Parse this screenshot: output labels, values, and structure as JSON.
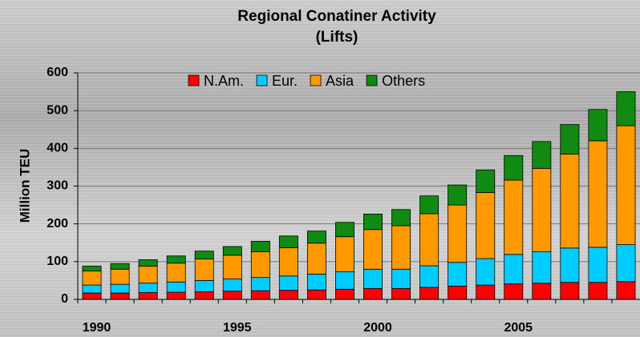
{
  "chart_data": {
    "type": "stacked-bar",
    "title": "Regional Conatiner Activity",
    "subtitle": "(Lifts)",
    "y_label": "Million TEU",
    "categories": [
      "1990",
      null,
      null,
      null,
      null,
      "1995",
      null,
      null,
      null,
      null,
      "2000",
      null,
      null,
      null,
      null,
      "2005",
      null,
      null,
      null,
      null
    ],
    "series": [
      {
        "name": "N.Am.",
        "color": "#ff0000",
        "values": [
          17,
          17,
          18,
          19,
          20,
          22,
          23,
          24,
          25,
          27,
          29,
          29,
          32,
          35,
          38,
          41,
          43,
          45,
          45,
          47
        ]
      },
      {
        "name": "Eur.",
        "color": "#00ccff",
        "values": [
          21,
          23,
          25,
          27,
          30,
          32,
          35,
          38,
          42,
          46,
          51,
          51,
          57,
          63,
          70,
          78,
          83,
          91,
          93,
          98
        ]
      },
      {
        "name": "Asia",
        "color": "#ff9900",
        "values": [
          37,
          40,
          45,
          50,
          57,
          63,
          68,
          75,
          82,
          93,
          105,
          115,
          138,
          152,
          175,
          197,
          221,
          249,
          282,
          315
        ]
      },
      {
        "name": "Others",
        "color": "#108a10",
        "values": [
          13,
          15,
          17,
          19,
          21,
          23,
          28,
          31,
          32,
          38,
          41,
          43,
          47,
          53,
          60,
          65,
          71,
          78,
          83,
          90
        ]
      }
    ],
    "ylim": [
      0,
      600
    ],
    "yticks": [
      0,
      100,
      200,
      300,
      400,
      500,
      600
    ],
    "grid": true,
    "legend": "top"
  }
}
